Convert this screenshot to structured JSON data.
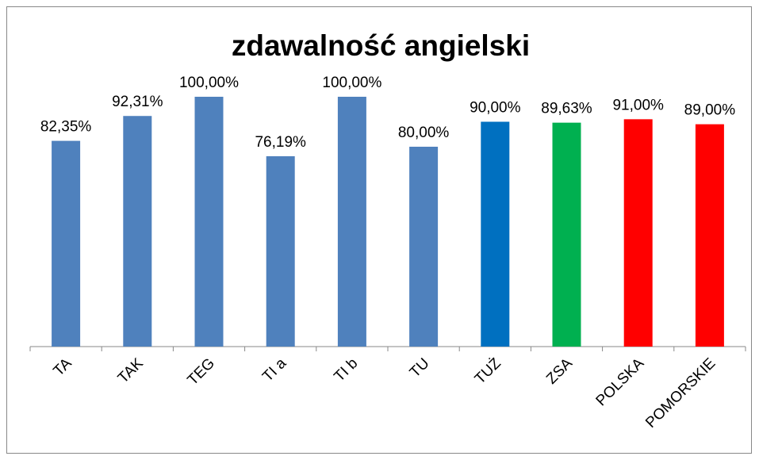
{
  "chart_data": {
    "type": "bar",
    "title": "zdawalność angielski",
    "categories": [
      "TA",
      "TAK",
      "TEG",
      "TI a",
      "TI b",
      "TU",
      "TUŻ",
      "ZSA",
      "POLSKA",
      "POMORSKIE"
    ],
    "values": [
      82.35,
      92.31,
      100,
      76.19,
      100,
      80,
      90,
      89.63,
      91,
      89
    ],
    "value_labels": [
      "82,35%",
      "92,31%",
      "100,00%",
      "76,19%",
      "100,00%",
      "80,00%",
      "90,00%",
      "89,63%",
      "91,00%",
      "89,00%"
    ],
    "colors": [
      "#4f81bd",
      "#4f81bd",
      "#4f81bd",
      "#4f81bd",
      "#4f81bd",
      "#4f81bd",
      "#0070c0",
      "#00b050",
      "#ff0000",
      "#ff0000"
    ],
    "ylim": [
      0,
      100
    ]
  }
}
